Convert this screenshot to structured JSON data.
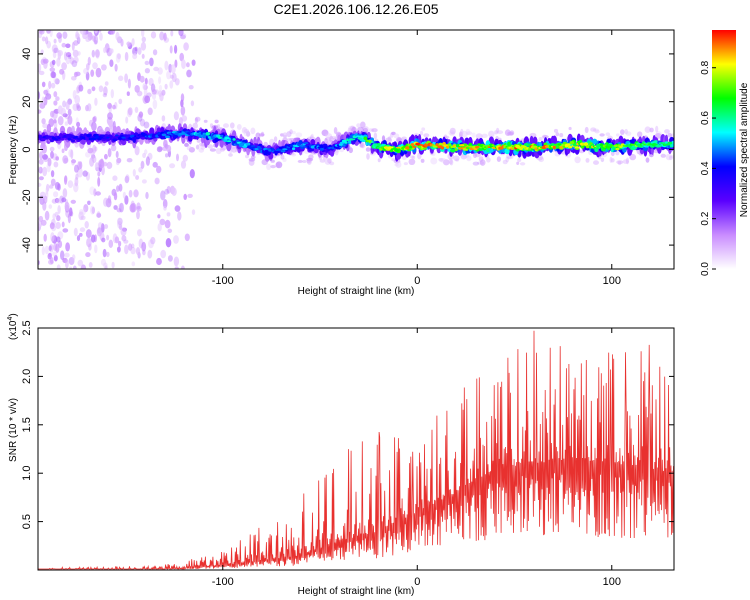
{
  "title": "C2E1.2026.106.12.26.E05",
  "chart_data": [
    {
      "type": "heatmap",
      "name": "spectrogram",
      "xlabel": "Height of straight line (km)",
      "ylabel": "Frequency (Hz)",
      "xlim": [
        -195,
        132
      ],
      "ylim": [
        -50,
        50
      ],
      "xticks": [
        -100,
        0,
        100
      ],
      "yticks": [
        -40,
        -20,
        0,
        20,
        40
      ],
      "colorbar": {
        "label": "Normalized spectral amplitude",
        "range": [
          0,
          0.95
        ],
        "ticks": [
          0.0,
          0.2,
          0.4,
          0.6,
          0.8
        ],
        "colormap": [
          "#ffffff",
          "#c98cff",
          "#5a00ff",
          "#0000ff",
          "#00ffff",
          "#00ff00",
          "#ffff00",
          "#ff0000"
        ]
      },
      "ridge": {
        "x": [
          -195,
          -150,
          -120,
          -100,
          -85,
          -75,
          -60,
          -45,
          -30,
          -20,
          -10,
          0,
          20,
          40,
          60,
          80,
          100,
          120,
          132
        ],
        "freq_hz": [
          5,
          5,
          7,
          5,
          1,
          -1,
          2,
          0,
          6,
          1,
          0,
          2,
          1,
          1,
          1,
          2,
          1,
          2,
          2
        ],
        "amplitude": [
          0.35,
          0.4,
          0.5,
          0.55,
          0.5,
          0.45,
          0.5,
          0.45,
          0.6,
          0.75,
          0.8,
          0.85,
          0.8,
          0.85,
          0.85,
          0.8,
          0.75,
          0.7,
          0.6
        ]
      },
      "noise_region_x": [
        -195,
        -115
      ]
    },
    {
      "type": "line",
      "name": "snr",
      "xlabel": "Height of straight line (km)",
      "ylabel": "SNR (10 * v/v)",
      "multiplier_label": "(x10",
      "multiplier_exp": "4",
      "multiplier_close": ")",
      "xlim": [
        -195,
        132
      ],
      "ylim": [
        0,
        2.5
      ],
      "xticks": [
        -100,
        0,
        100
      ],
      "yticks": [
        0.5,
        1.0,
        1.5,
        2.0,
        2.5
      ],
      "color": "#e8312f",
      "envelope": {
        "x": [
          -195,
          -140,
          -120,
          -100,
          -80,
          -60,
          -40,
          -20,
          0,
          20,
          40,
          60,
          80,
          100,
          120,
          132
        ],
        "baseline": [
          0.0,
          0.0,
          0.02,
          0.05,
          0.1,
          0.15,
          0.3,
          0.4,
          0.6,
          0.8,
          1.05,
          1.1,
          1.15,
          1.1,
          1.05,
          1.0
        ],
        "peak": [
          0.03,
          0.04,
          0.1,
          0.3,
          0.45,
          0.8,
          1.2,
          1.5,
          1.3,
          1.9,
          2.2,
          2.5,
          2.3,
          2.3,
          2.4,
          1.9
        ]
      }
    }
  ]
}
